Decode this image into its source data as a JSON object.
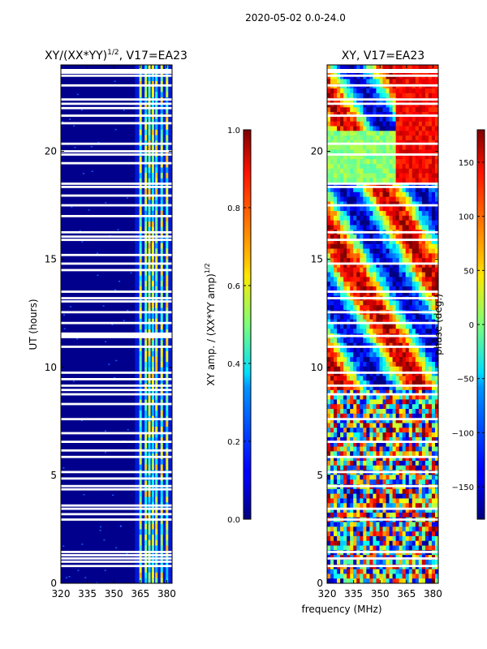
{
  "figure": {
    "suptitle": "2020-05-02 0.0-24.0",
    "xlabel_shared": "frequency (MHz)"
  },
  "chart_data": [
    {
      "type": "heatmap",
      "title_main": "XY/(XX*YY)",
      "title_sup": "1/2",
      "title_rest": ", V17=EA23",
      "ylabel": "UT (hours)",
      "xlabel": "",
      "xlim": [
        320,
        383
      ],
      "ylim": [
        0,
        24
      ],
      "xticks": [
        320,
        335,
        350,
        365,
        380
      ],
      "yticks": [
        0,
        5,
        10,
        15,
        20
      ],
      "colorbar": {
        "label_main": "XY amp. / (XX*YY amp)",
        "label_sup": "1/2",
        "range": [
          0.0,
          1.0
        ],
        "ticks": [
          "0.0",
          "0.2",
          "0.4",
          "0.6",
          "0.8",
          "1.0"
        ],
        "colormap": "jet"
      },
      "band_channels_mhz": [
        365,
        368,
        370,
        372,
        374,
        377,
        380
      ],
      "flagged_hours": [
        0.8,
        1.0,
        1.15,
        1.3,
        1.45,
        2.95,
        3.2,
        3.45,
        3.6,
        4.35,
        4.5,
        4.85,
        5.15,
        5.85,
        6.15,
        6.55,
        6.95,
        7.6,
        8.3,
        8.75,
        8.95,
        9.15,
        9.45,
        9.75,
        10.95,
        11.4,
        11.55,
        12.05,
        12.55,
        13.05,
        13.2,
        13.5,
        14.5,
        14.8,
        15.2,
        15.9,
        16.05,
        16.25,
        17.0,
        17.5,
        17.95,
        18.35,
        18.5,
        19.45,
        19.85,
        20.0,
        20.35,
        21.3,
        21.65,
        22.0,
        22.2,
        22.4,
        23.05,
        23.5,
        23.75
      ]
    },
    {
      "type": "heatmap",
      "title_main": "XY, V17=EA23",
      "ylabel": "",
      "xlabel": "frequency (MHz)",
      "xlim": [
        320,
        383
      ],
      "ylim": [
        0,
        24
      ],
      "xticks": [
        320,
        335,
        350,
        365,
        380
      ],
      "yticks": [
        0,
        5,
        10,
        15,
        20
      ],
      "colorbar": {
        "label": "phase (deg.)",
        "range": [
          -180,
          180
        ],
        "ticks": [
          "−150",
          "−100",
          "−50",
          "0",
          "50",
          "100",
          "150"
        ],
        "colormap": "jet"
      },
      "flagged_hours": [
        0.8,
        1.15,
        1.45,
        2.95,
        3.45,
        4.5,
        5.15,
        5.85,
        6.55,
        7.6,
        8.75,
        9.15,
        9.75,
        10.95,
        11.45,
        12.05,
        12.55,
        13.2,
        13.5,
        14.8,
        15.9,
        16.25,
        17.5,
        18.35,
        18.5,
        19.85,
        20.35,
        21.65,
        22.2,
        22.4,
        23.05,
        23.5,
        23.75
      ]
    }
  ]
}
